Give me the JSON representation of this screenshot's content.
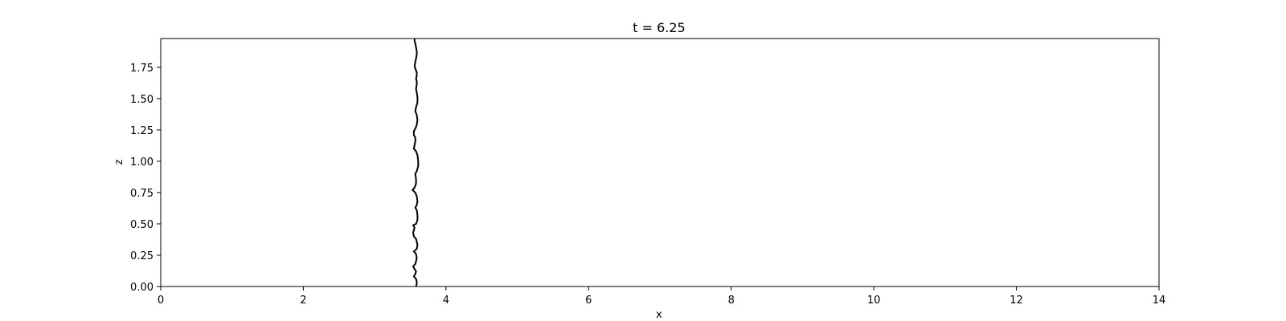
{
  "chart_data": {
    "type": "line",
    "title": "t = 6.25",
    "xlabel": "x",
    "ylabel": "z",
    "xlim": [
      0,
      14
    ],
    "ylim": [
      0,
      1.98
    ],
    "x_ticks": [
      0,
      2,
      4,
      6,
      8,
      10,
      12,
      14
    ],
    "y_ticks": [
      0.0,
      0.25,
      0.5,
      0.75,
      1.0,
      1.25,
      1.5,
      1.75
    ],
    "x_tick_labels": [
      "0",
      "2",
      "4",
      "6",
      "8",
      "10",
      "12",
      "14"
    ],
    "y_tick_labels": [
      "0.00",
      "0.25",
      "0.50",
      "0.75",
      "1.00",
      "1.25",
      "1.50",
      "1.75"
    ],
    "grid": false,
    "series": [
      {
        "color": "#000000",
        "points": [
          [
            3.58,
            0.0
          ],
          [
            3.59,
            0.02
          ],
          [
            3.59,
            0.04
          ],
          [
            3.58,
            0.06
          ],
          [
            3.55,
            0.08
          ],
          [
            3.57,
            0.1
          ],
          [
            3.58,
            0.12
          ],
          [
            3.56,
            0.14
          ],
          [
            3.54,
            0.16
          ],
          [
            3.57,
            0.18
          ],
          [
            3.58,
            0.2
          ],
          [
            3.59,
            0.23
          ],
          [
            3.58,
            0.26
          ],
          [
            3.55,
            0.28
          ],
          [
            3.59,
            0.3
          ],
          [
            3.6,
            0.33
          ],
          [
            3.59,
            0.36
          ],
          [
            3.58,
            0.38
          ],
          [
            3.55,
            0.4
          ],
          [
            3.54,
            0.43
          ],
          [
            3.55,
            0.45
          ],
          [
            3.56,
            0.47
          ],
          [
            3.54,
            0.49
          ],
          [
            3.58,
            0.5
          ],
          [
            3.6,
            0.53
          ],
          [
            3.6,
            0.57
          ],
          [
            3.59,
            0.61
          ],
          [
            3.57,
            0.63
          ],
          [
            3.59,
            0.65
          ],
          [
            3.6,
            0.68
          ],
          [
            3.59,
            0.72
          ],
          [
            3.57,
            0.75
          ],
          [
            3.53,
            0.77
          ],
          [
            3.56,
            0.79
          ],
          [
            3.58,
            0.82
          ],
          [
            3.58,
            0.86
          ],
          [
            3.57,
            0.9
          ],
          [
            3.59,
            0.92
          ],
          [
            3.61,
            0.96
          ],
          [
            3.61,
            1.0
          ],
          [
            3.6,
            1.05
          ],
          [
            3.58,
            1.08
          ],
          [
            3.55,
            1.1
          ],
          [
            3.56,
            1.13
          ],
          [
            3.57,
            1.16
          ],
          [
            3.57,
            1.19
          ],
          [
            3.55,
            1.21
          ],
          [
            3.55,
            1.24
          ],
          [
            3.57,
            1.26
          ],
          [
            3.59,
            1.29
          ],
          [
            3.6,
            1.33
          ],
          [
            3.59,
            1.37
          ],
          [
            3.57,
            1.4
          ],
          [
            3.58,
            1.43
          ],
          [
            3.6,
            1.47
          ],
          [
            3.6,
            1.51
          ],
          [
            3.59,
            1.55
          ],
          [
            3.58,
            1.58
          ],
          [
            3.59,
            1.61
          ],
          [
            3.59,
            1.64
          ],
          [
            3.58,
            1.66
          ],
          [
            3.59,
            1.68
          ],
          [
            3.59,
            1.71
          ],
          [
            3.57,
            1.74
          ],
          [
            3.56,
            1.76
          ],
          [
            3.57,
            1.79
          ],
          [
            3.58,
            1.82
          ],
          [
            3.59,
            1.85
          ],
          [
            3.59,
            1.88
          ],
          [
            3.58,
            1.91
          ],
          [
            3.57,
            1.94
          ],
          [
            3.56,
            1.96
          ],
          [
            3.56,
            1.98
          ]
        ]
      }
    ]
  }
}
